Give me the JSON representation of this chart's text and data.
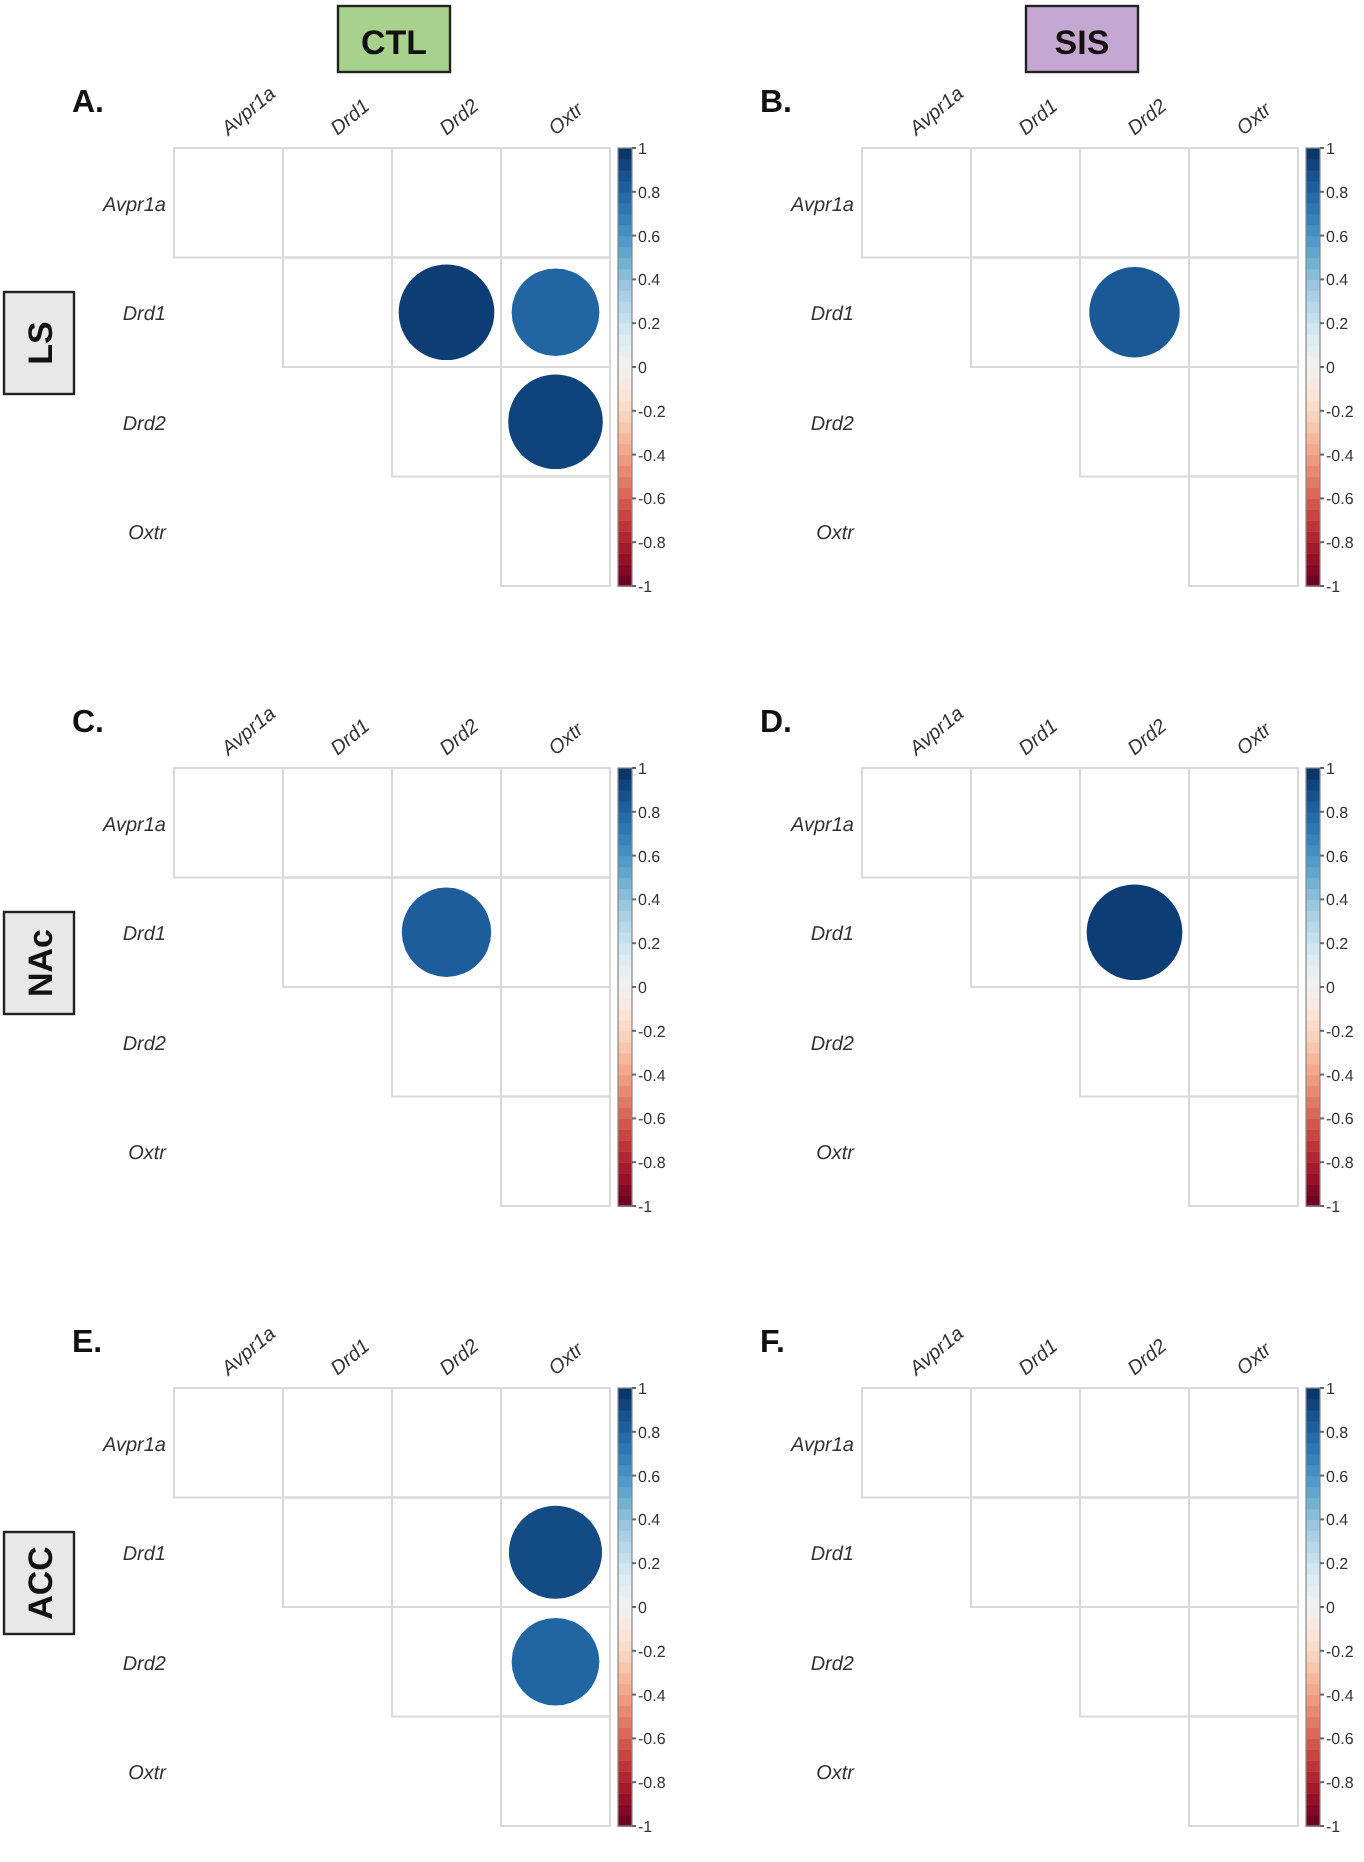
{
  "chart_data": [
    {
      "type": "heatmap",
      "title": "A.",
      "subtitle": "CTL",
      "annotations": [
        "LS"
      ],
      "categories": [
        "Avpr1a",
        "Drd1",
        "Drd2",
        "Oxtr"
      ],
      "y_categories": [
        "Avpr1a",
        "Drd1",
        "Drd2",
        "Oxtr"
      ],
      "cells": [
        [
          null,
          null,
          null,
          null
        ],
        [
          null,
          null,
          0.95,
          0.8
        ],
        [
          null,
          null,
          null,
          0.93
        ],
        [
          null,
          null,
          null,
          null
        ]
      ],
      "clim": [
        -1,
        1
      ],
      "cticks": [
        -1,
        -0.8,
        -0.6,
        -0.4,
        -0.2,
        0,
        0.2,
        0.4,
        0.6,
        0.8,
        1
      ]
    },
    {
      "type": "heatmap",
      "title": "B.",
      "subtitle": "SIS",
      "categories": [
        "Avpr1a",
        "Drd1",
        "Drd2",
        "Oxtr"
      ],
      "y_categories": [
        "Avpr1a",
        "Drd1",
        "Drd2",
        "Oxtr"
      ],
      "cells": [
        [
          null,
          null,
          null,
          null
        ],
        [
          null,
          null,
          0.85,
          null
        ],
        [
          null,
          null,
          null,
          null
        ],
        [
          null,
          null,
          null,
          null
        ]
      ],
      "clim": [
        -1,
        1
      ],
      "cticks": [
        -1,
        -0.8,
        -0.6,
        -0.4,
        -0.2,
        0,
        0.2,
        0.4,
        0.6,
        0.8,
        1
      ]
    },
    {
      "type": "heatmap",
      "title": "C.",
      "annotations": [
        "NAc"
      ],
      "categories": [
        "Avpr1a",
        "Drd1",
        "Drd2",
        "Oxtr"
      ],
      "y_categories": [
        "Avpr1a",
        "Drd1",
        "Drd2",
        "Oxtr"
      ],
      "cells": [
        [
          null,
          null,
          null,
          null
        ],
        [
          null,
          null,
          0.83,
          null
        ],
        [
          null,
          null,
          null,
          null
        ],
        [
          null,
          null,
          null,
          null
        ]
      ],
      "clim": [
        -1,
        1
      ],
      "cticks": [
        -1,
        -0.8,
        -0.6,
        -0.4,
        -0.2,
        0,
        0.2,
        0.4,
        0.6,
        0.8,
        1
      ]
    },
    {
      "type": "heatmap",
      "title": "D.",
      "categories": [
        "Avpr1a",
        "Drd1",
        "Drd2",
        "Oxtr"
      ],
      "y_categories": [
        "Avpr1a",
        "Drd1",
        "Drd2",
        "Oxtr"
      ],
      "cells": [
        [
          null,
          null,
          null,
          null
        ],
        [
          null,
          null,
          0.95,
          null
        ],
        [
          null,
          null,
          null,
          null
        ],
        [
          null,
          null,
          null,
          null
        ]
      ],
      "clim": [
        -1,
        1
      ],
      "cticks": [
        -1,
        -0.8,
        -0.6,
        -0.4,
        -0.2,
        0,
        0.2,
        0.4,
        0.6,
        0.8,
        1
      ]
    },
    {
      "type": "heatmap",
      "title": "E.",
      "annotations": [
        "ACC"
      ],
      "categories": [
        "Avpr1a",
        "Drd1",
        "Drd2",
        "Oxtr"
      ],
      "y_categories": [
        "Avpr1a",
        "Drd1",
        "Drd2",
        "Oxtr"
      ],
      "cells": [
        [
          null,
          null,
          null,
          null
        ],
        [
          null,
          null,
          null,
          0.9
        ],
        [
          null,
          null,
          null,
          0.8
        ],
        [
          null,
          null,
          null,
          null
        ]
      ],
      "clim": [
        -1,
        1
      ],
      "cticks": [
        -1,
        -0.8,
        -0.6,
        -0.4,
        -0.2,
        0,
        0.2,
        0.4,
        0.6,
        0.8,
        1
      ]
    },
    {
      "type": "heatmap",
      "title": "F.",
      "categories": [
        "Avpr1a",
        "Drd1",
        "Drd2",
        "Oxtr"
      ],
      "y_categories": [
        "Avpr1a",
        "Drd1",
        "Drd2",
        "Oxtr"
      ],
      "cells": [
        [
          null,
          null,
          null,
          null
        ],
        [
          null,
          null,
          null,
          null
        ],
        [
          null,
          null,
          null,
          null
        ],
        [
          null,
          null,
          null,
          null
        ]
      ],
      "clim": [
        -1,
        1
      ],
      "cticks": [
        -1,
        -0.8,
        -0.6,
        -0.4,
        -0.2,
        0,
        0.2,
        0.4,
        0.6,
        0.8,
        1
      ]
    }
  ]
}
